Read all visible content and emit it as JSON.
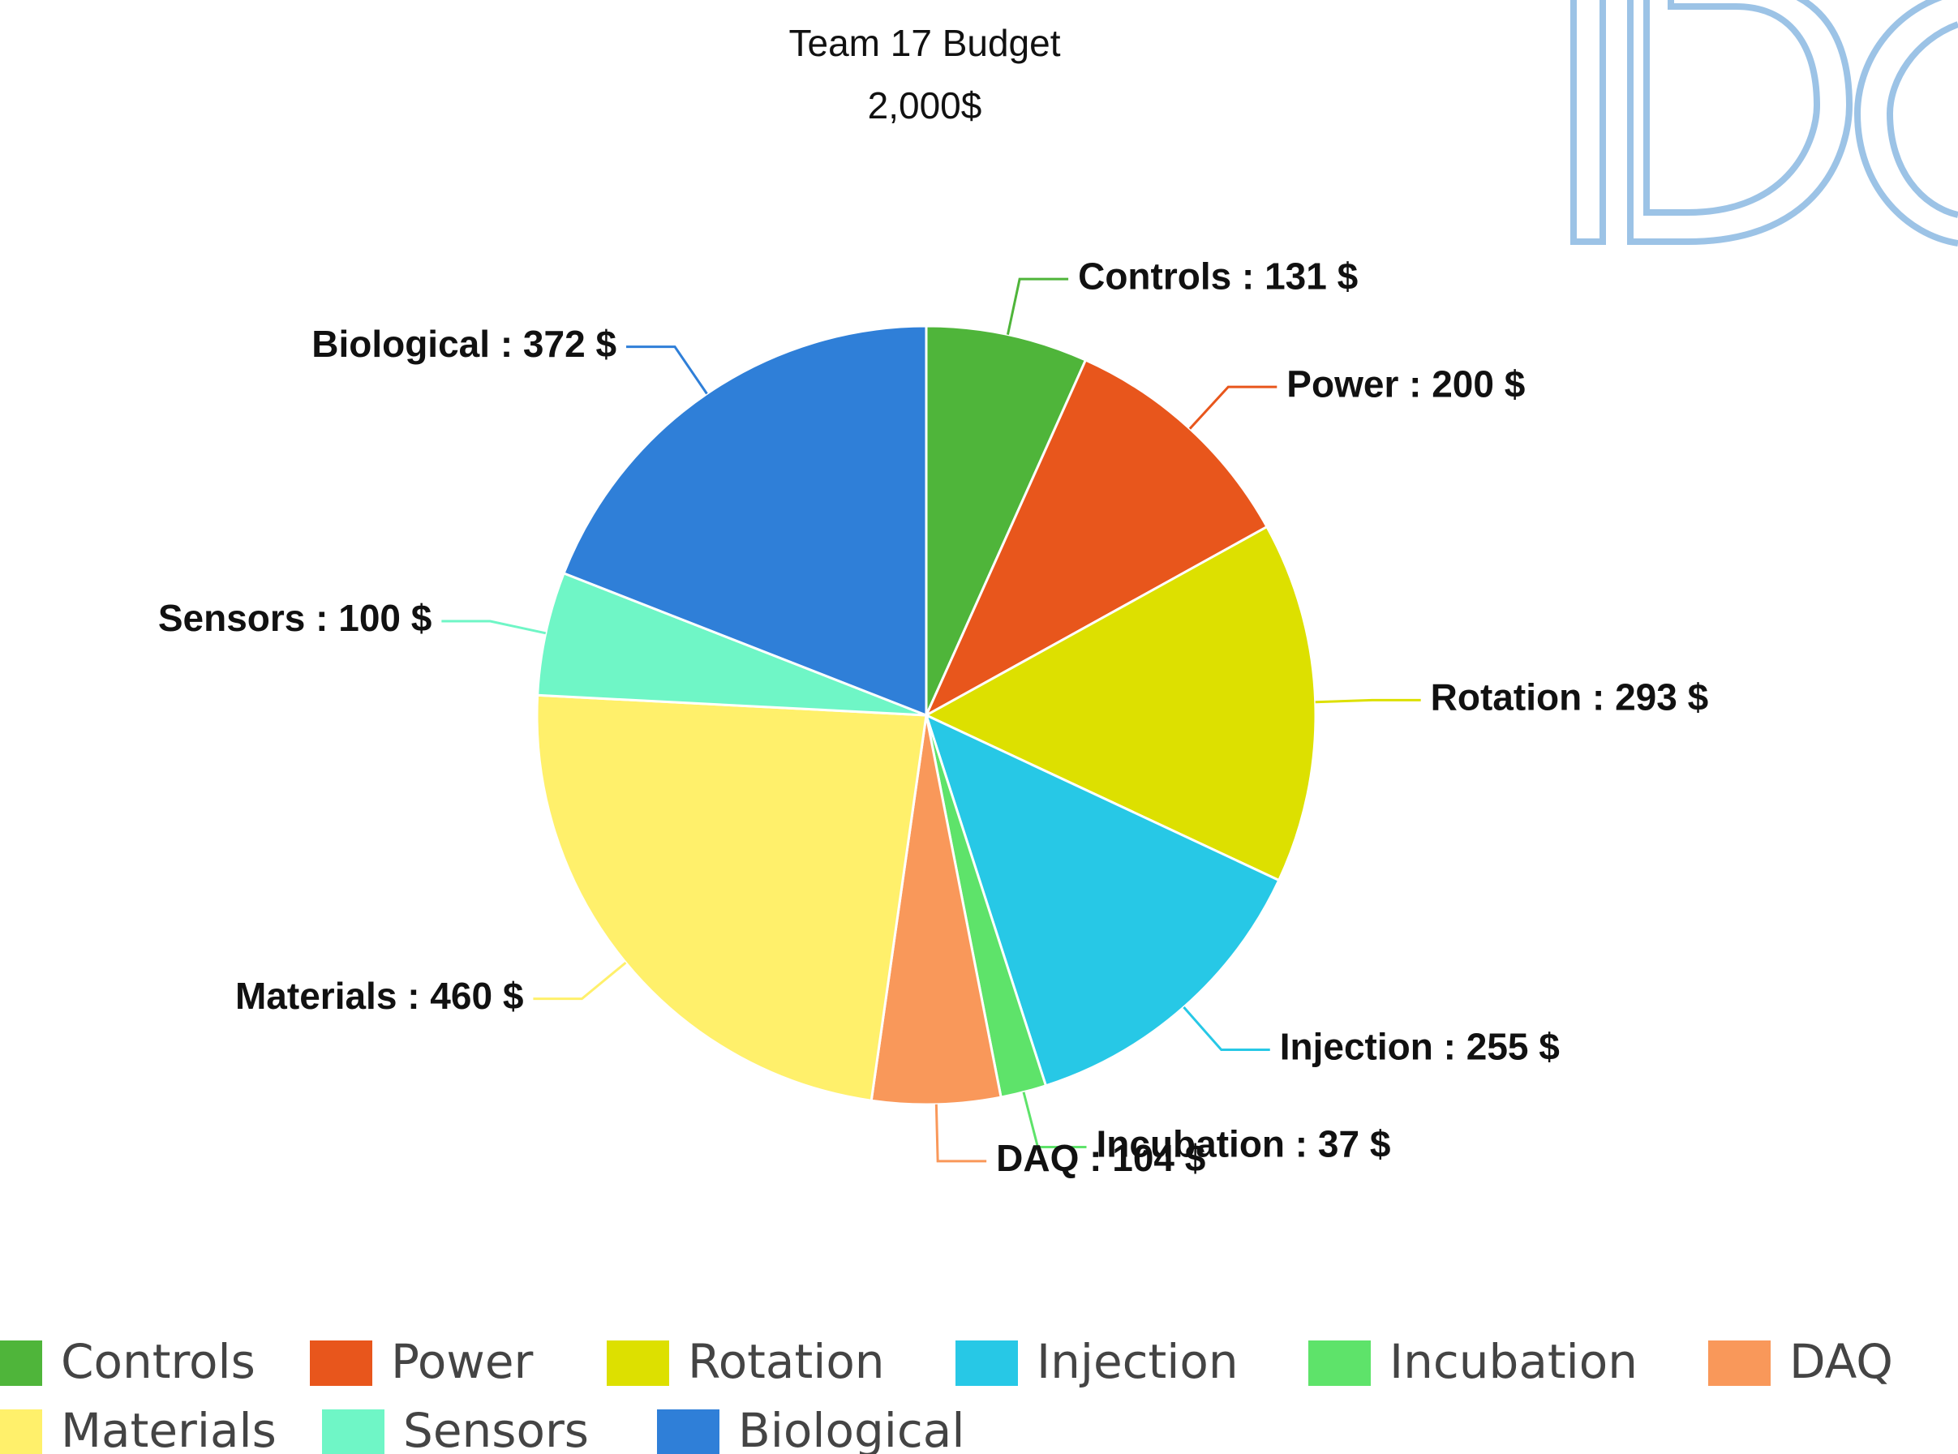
{
  "chart_data": {
    "type": "pie",
    "title": "Team 17 Budget",
    "subtitle": "2,000$",
    "categories": [
      "Controls",
      "Power",
      "Rotation",
      "Injection",
      "Incubation",
      "DAQ",
      "Materials",
      "Sensors",
      "Biological"
    ],
    "values": [
      131,
      200,
      293,
      255,
      37,
      104,
      460,
      100,
      372
    ],
    "value_labels": [
      "Controls : 131 $",
      "Power : 200 $",
      "Rotation : 293 $",
      "Injection : 255 $",
      "Incubation : 37 $",
      "DAQ : 104 $",
      "Materials : 460 $",
      "Sensors : 100 $",
      "Biological : 372 $"
    ],
    "colors": [
      "#4fb53a",
      "#e8561c",
      "#dde000",
      "#27c8e6",
      "#5ee36a",
      "#f9985a",
      "#fff06b",
      "#6ff6c6",
      "#2f7fd8"
    ],
    "legend": "bottom"
  }
}
